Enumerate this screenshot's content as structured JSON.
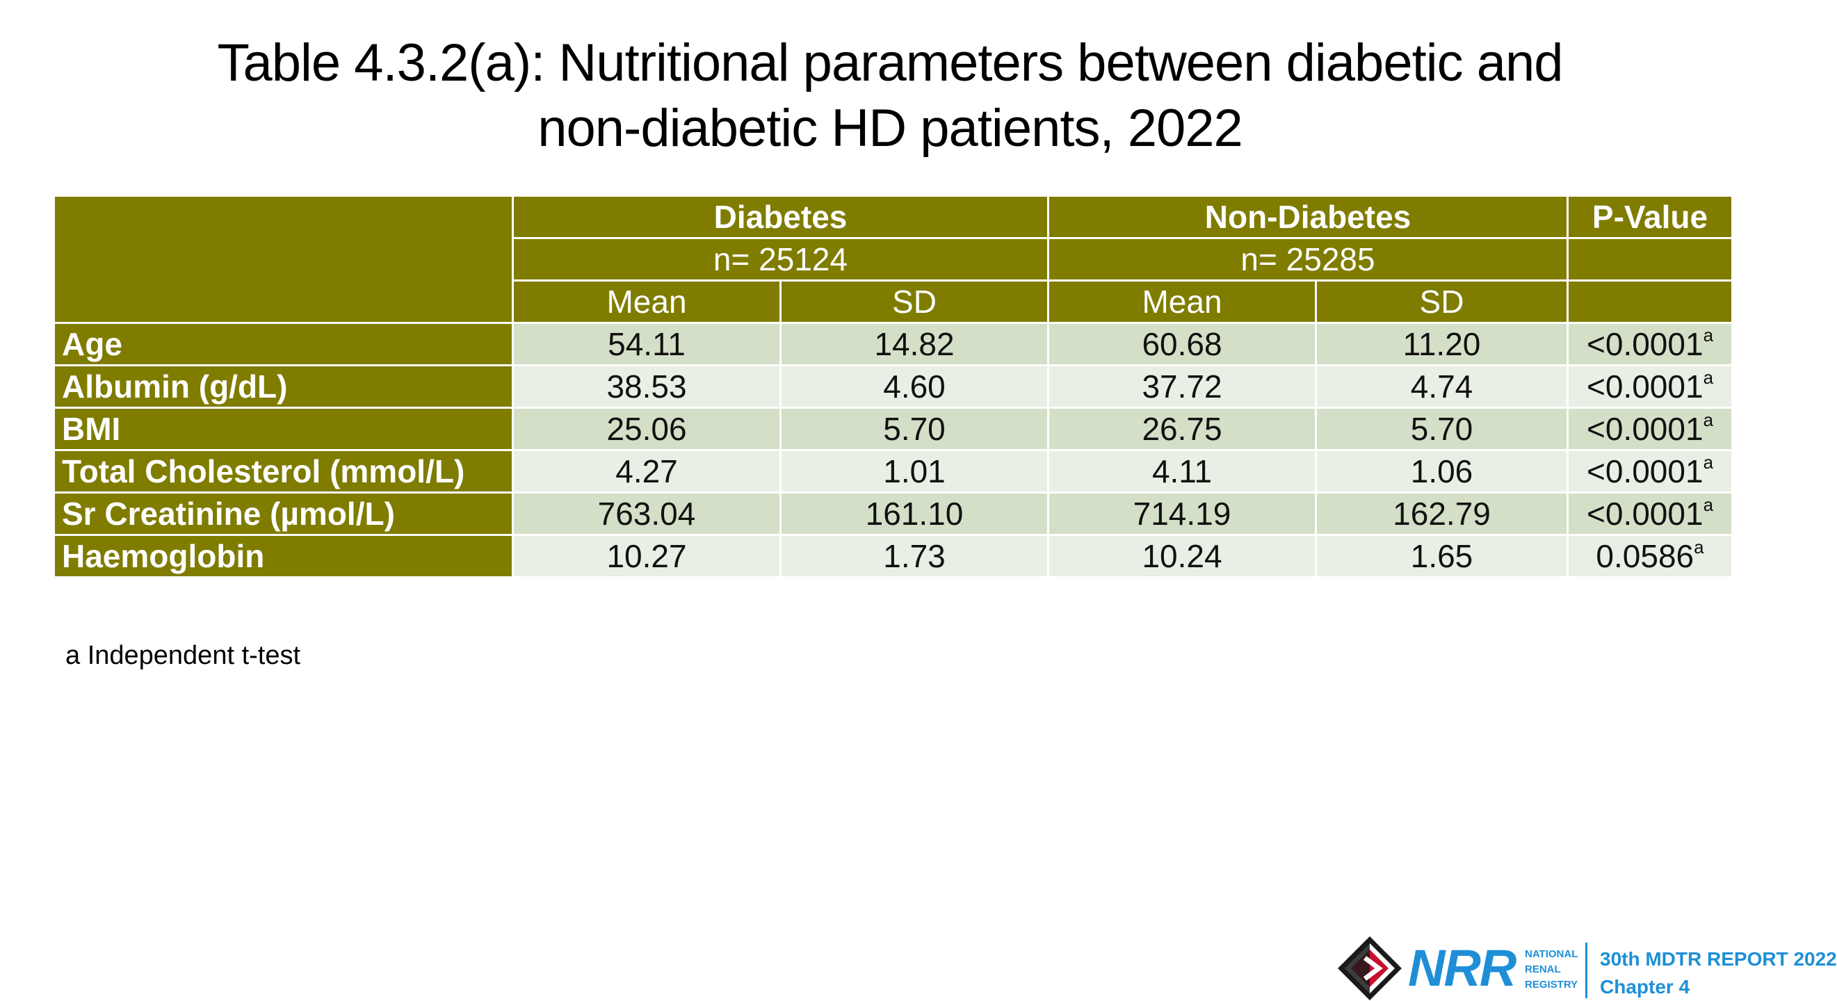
{
  "title": {
    "line1": "Table 4.3.2(a): Nutritional parameters between diabetic and",
    "line2": "non-diabetic HD patients, 2022"
  },
  "table": {
    "group_headers": {
      "diabetes": "Diabetes",
      "non_diabetes": "Non-Diabetes",
      "p_value": "P-Value"
    },
    "n_row": {
      "diabetes": "n= 25124",
      "non_diabetes": "n= 25285"
    },
    "sub_headers": {
      "mean": "Mean",
      "sd": "SD"
    },
    "rows": [
      {
        "label": "Age",
        "d_mean": "54.11",
        "d_sd": "14.82",
        "n_mean": "60.68",
        "n_sd": "11.20",
        "p": "<0.0001",
        "p_sup": "a"
      },
      {
        "label": "Albumin (g/dL)",
        "d_mean": "38.53",
        "d_sd": "4.60",
        "n_mean": "37.72",
        "n_sd": "4.74",
        "p": "<0.0001",
        "p_sup": "a"
      },
      {
        "label": "BMI",
        "d_mean": "25.06",
        "d_sd": "5.70",
        "n_mean": "26.75",
        "n_sd": "5.70",
        "p": "<0.0001",
        "p_sup": "a"
      },
      {
        "label": "Total Cholesterol (mmol/L)",
        "d_mean": "4.27",
        "d_sd": "1.01",
        "n_mean": "4.11",
        "n_sd": "1.06",
        "p": "<0.0001",
        "p_sup": "a"
      },
      {
        "label": "Sr Creatinine (µmol/L)",
        "d_mean": "763.04",
        "d_sd": "161.10",
        "n_mean": "714.19",
        "n_sd": "162.79",
        "p": "<0.0001",
        "p_sup": "a"
      },
      {
        "label": "Haemoglobin",
        "d_mean": "10.27",
        "d_sd": "1.73",
        "n_mean": "10.24",
        "n_sd": "1.65",
        "p": "0.0586",
        "p_sup": "a"
      }
    ]
  },
  "footnote": "a Independent t-test",
  "branding": {
    "logo_text": "NRR",
    "org_line1": "NATIONAL",
    "org_line2": "RENAL",
    "org_line3": "REGISTRY",
    "report_title": "30th MDTR REPORT 2022",
    "chapter": "Chapter 4"
  },
  "colors": {
    "header_olive": "#7f7c00",
    "row_light_green": "#d4dfc7",
    "row_lighter_green": "#e9efe4",
    "brand_blue": "#1e8fd6"
  }
}
